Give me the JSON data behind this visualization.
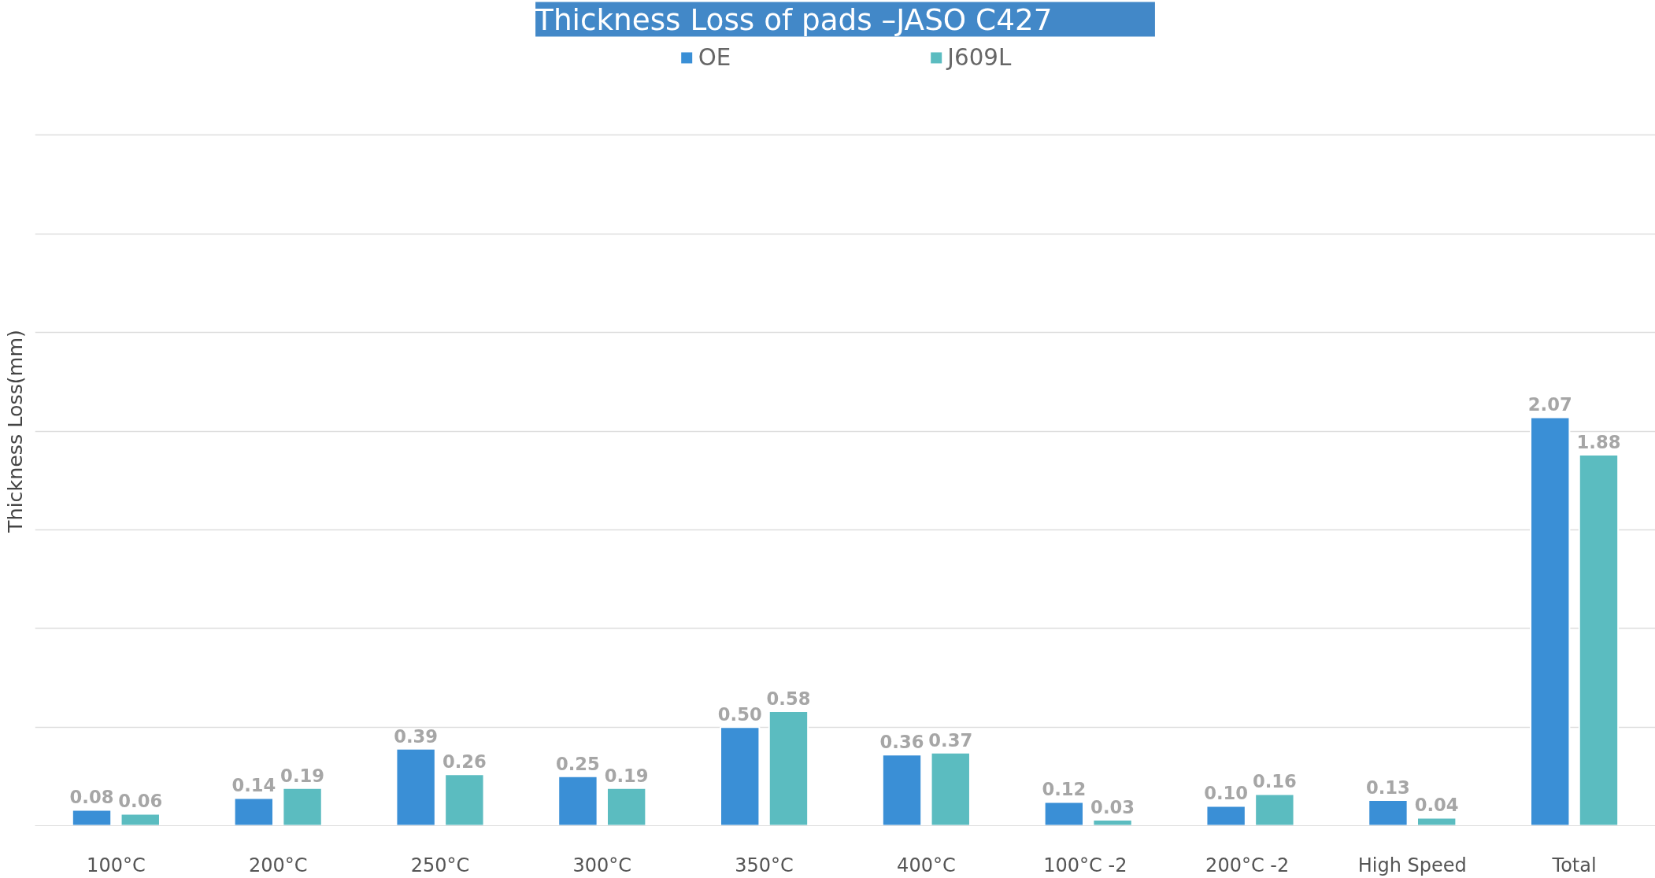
{
  "chart_data": {
    "type": "bar",
    "title": "Thickness     Loss of pads     –JASO    C427",
    "ylabel": "Thickness Loss(mm)",
    "categories": [
      "100°C",
      "200°C",
      "250°C",
      "300°C",
      "350°C",
      "400°C",
      "100°C  -2",
      "200°C  -2",
      "High Speed",
      "Total"
    ],
    "series": [
      {
        "name": "OE",
        "color": "#3a8fd6",
        "values": [
          0.08,
          0.14,
          0.39,
          0.25,
          0.5,
          0.36,
          0.12,
          0.1,
          0.13,
          2.07
        ],
        "value_labels": [
          "0.08",
          "0.14",
          "0.39",
          "0.25",
          "0.50",
          "0.36",
          "0.12",
          "0.10",
          "0.13",
          "2.07"
        ]
      },
      {
        "name": "J609L",
        "color": "#5bbcc0",
        "values": [
          0.06,
          0.19,
          0.26,
          0.19,
          0.58,
          0.37,
          0.03,
          0.16,
          0.04,
          1.88
        ],
        "value_labels": [
          "0.06",
          "0.19",
          "0.26",
          "0.19",
          "0.58",
          "0.37",
          "0.03",
          "0.16",
          "0.04",
          "1.88"
        ]
      }
    ],
    "yticks": [
      {
        "value": 0,
        "label": null
      },
      {
        "value": 0.5,
        "label": null
      },
      {
        "value": 1.0,
        "label": null
      },
      {
        "value": 1.5,
        "label": null
      },
      {
        "value": 2.0,
        "label": null
      },
      {
        "value": 2.5,
        "label": null
      },
      {
        "value": 3.0,
        "label": null
      },
      {
        "value": 3.5,
        "label": null
      }
    ],
    "tick_labels": "x",
    "grid": "y",
    "legend": "top"
  }
}
